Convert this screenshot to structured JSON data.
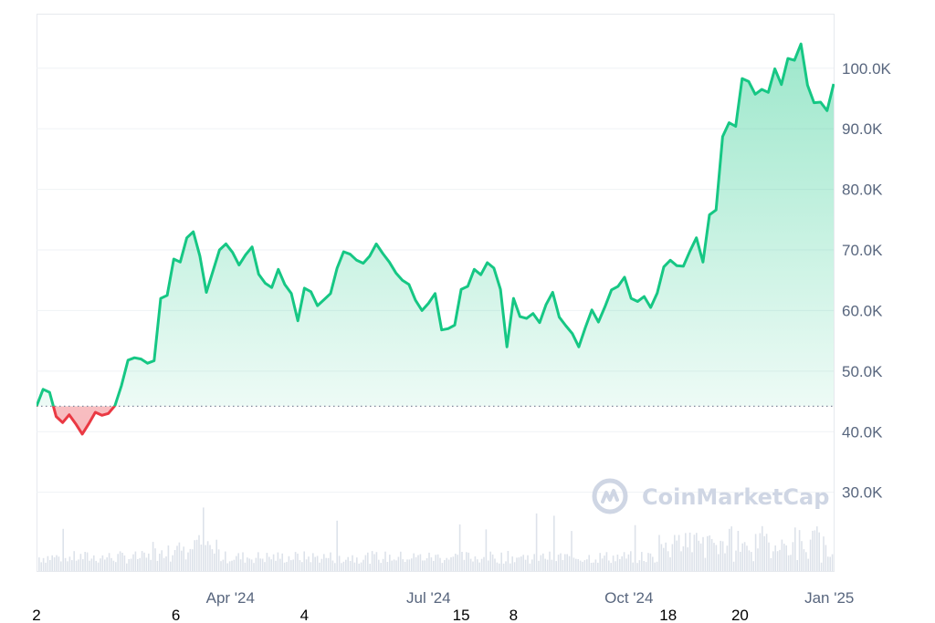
{
  "chart_data": {
    "type": "area",
    "title": "",
    "xlabel": "",
    "ylabel": "",
    "ylim": [
      17000,
      109000
    ],
    "baseline": 44200,
    "y_ticks": [
      30000,
      40000,
      50000,
      60000,
      70000,
      80000,
      90000,
      100000
    ],
    "y_tick_labels": [
      "30.0K",
      "40.0K",
      "50.0K",
      "60.0K",
      "70.0K",
      "80.0K",
      "90.0K",
      "100.0K"
    ],
    "x_ticks": [
      "2024-03-31",
      "2024-06-30",
      "2024-09-30",
      "2024-12-31"
    ],
    "x_tick_labels": [
      "Apr '24",
      "Jul '24",
      "Oct '24",
      "Jan '25"
    ],
    "secondary_x_ticks": [
      "2024-01-02",
      "2024-03-06",
      "2024-05-04",
      "2024-07-15",
      "2024-08-08",
      "2024-10-18",
      "2024-11-20"
    ],
    "secondary_x_tick_labels": [
      "2",
      "6",
      "4",
      "15",
      "8",
      "18",
      "20"
    ],
    "colors": {
      "up": "#16c784",
      "down": "#ea3943",
      "grid": "#eff2f5",
      "baseline": "#808a9d",
      "volume": "#dde2ea"
    },
    "watermark": "CoinMarketCap",
    "grid": true,
    "series": [
      {
        "x": [
          "2024-01-02",
          "2024-01-05",
          "2024-01-08",
          "2024-01-11",
          "2024-01-14",
          "2024-01-17",
          "2024-01-20",
          "2024-01-23",
          "2024-01-26",
          "2024-01-29",
          "2024-02-01",
          "2024-02-04",
          "2024-02-07",
          "2024-02-10",
          "2024-02-13",
          "2024-02-16",
          "2024-02-19",
          "2024-02-22",
          "2024-02-25",
          "2024-02-28",
          "2024-03-02",
          "2024-03-05",
          "2024-03-08",
          "2024-03-11",
          "2024-03-14",
          "2024-03-17",
          "2024-03-20",
          "2024-03-23",
          "2024-03-26",
          "2024-03-29",
          "2024-04-01",
          "2024-04-04",
          "2024-04-07",
          "2024-04-10",
          "2024-04-13",
          "2024-04-16",
          "2024-04-19",
          "2024-04-22",
          "2024-04-25",
          "2024-04-28",
          "2024-05-01",
          "2024-05-04",
          "2024-05-07",
          "2024-05-10",
          "2024-05-13",
          "2024-05-16",
          "2024-05-19",
          "2024-05-22",
          "2024-05-25",
          "2024-05-28",
          "2024-05-31",
          "2024-06-03",
          "2024-06-06",
          "2024-06-09",
          "2024-06-12",
          "2024-06-15",
          "2024-06-18",
          "2024-06-21",
          "2024-06-24",
          "2024-06-27",
          "2024-06-30",
          "2024-07-03",
          "2024-07-06",
          "2024-07-09",
          "2024-07-12",
          "2024-07-15",
          "2024-07-18",
          "2024-07-21",
          "2024-07-24",
          "2024-07-27",
          "2024-07-30",
          "2024-08-02",
          "2024-08-05",
          "2024-08-08",
          "2024-08-11",
          "2024-08-14",
          "2024-08-17",
          "2024-08-20",
          "2024-08-23",
          "2024-08-26",
          "2024-08-29",
          "2024-09-01",
          "2024-09-04",
          "2024-09-07",
          "2024-09-10",
          "2024-09-13",
          "2024-09-16",
          "2024-09-19",
          "2024-09-22",
          "2024-09-25",
          "2024-09-28",
          "2024-10-01",
          "2024-10-04",
          "2024-10-07",
          "2024-10-10",
          "2024-10-13",
          "2024-10-16",
          "2024-10-19",
          "2024-10-22",
          "2024-10-25",
          "2024-10-28",
          "2024-10-31",
          "2024-11-03",
          "2024-11-06",
          "2024-11-09",
          "2024-11-12",
          "2024-11-15",
          "2024-11-18",
          "2024-11-21",
          "2024-11-24",
          "2024-11-27",
          "2024-11-30",
          "2024-12-03",
          "2024-12-06",
          "2024-12-09",
          "2024-12-12",
          "2024-12-15",
          "2024-12-18",
          "2024-12-21",
          "2024-12-24",
          "2024-12-27",
          "2024-12-30",
          "2025-01-02"
        ],
        "values": [
          44200,
          47000,
          46500,
          42500,
          41500,
          42800,
          41300,
          39600,
          41300,
          43200,
          42700,
          43000,
          44300,
          47600,
          51800,
          52200,
          52000,
          51300,
          51700,
          62000,
          62500,
          68500,
          68000,
          72000,
          73000,
          69000,
          63000,
          66500,
          70000,
          71000,
          69600,
          67500,
          69200,
          70500,
          66000,
          64500,
          63800,
          66800,
          64300,
          62800,
          58300,
          63700,
          63100,
          60800,
          61800,
          62800,
          67000,
          69700,
          69300,
          68300,
          67800,
          69000,
          71000,
          69400,
          68000,
          66200,
          65000,
          64300,
          61700,
          60000,
          61200,
          62800,
          56800,
          57000,
          57600,
          63500,
          64000,
          66800,
          65900,
          67900,
          67000,
          63500,
          54000,
          62000,
          59000,
          58700,
          59500,
          58000,
          61000,
          63000,
          58900,
          57500,
          56200,
          54000,
          57200,
          60100,
          58100,
          60600,
          63400,
          64000,
          65500,
          62000,
          61500,
          62300,
          60500,
          62900,
          67200,
          68300,
          67400,
          67300,
          69800,
          72000,
          68000,
          75800,
          76600,
          88700,
          91000,
          90400,
          98300,
          97800,
          95700,
          96500,
          96000,
          99900,
          97300,
          101600,
          101300,
          104000,
          97200,
          94300,
          94400,
          93000,
          97400
        ]
      }
    ]
  }
}
